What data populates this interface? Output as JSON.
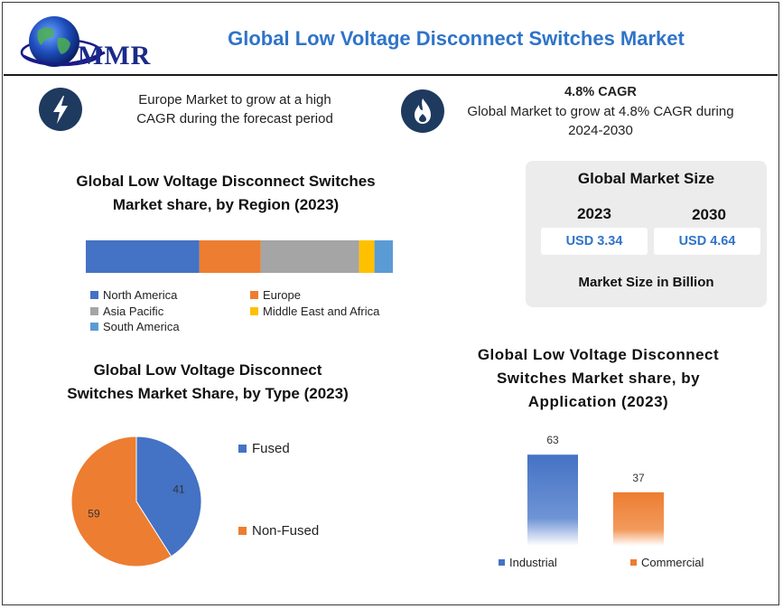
{
  "header": {
    "logo_text": "MMR",
    "title": "Global Low Voltage Disconnect Switches Market"
  },
  "highlights": {
    "left": {
      "icon": "lightning-bolt-icon",
      "line1": "Europe Market to grow at a high",
      "line2": "CAGR during the forecast period"
    },
    "right": {
      "icon": "flame-icon",
      "heading": "4.8% CAGR",
      "line1": "Global Market to grow at 4.8% CAGR during",
      "line2": "2024-2030"
    }
  },
  "market_size": {
    "title": "Global Market Size",
    "year1": "2023",
    "value1": "USD 3.34",
    "year2": "2030",
    "value2": "USD 4.64",
    "unit": "Market Size in Billion"
  },
  "colors": {
    "title_blue": "#2f74c9",
    "icon_navy": "#1f3a5f"
  },
  "chart_data": [
    {
      "type": "bar",
      "orientation": "horizontal-stacked",
      "title_line1": "Global Low Voltage Disconnect Switches",
      "title_line2": "Market share, by Region (2023)",
      "categories": [
        "North America",
        "Europe",
        "Asia Pacific",
        "Middle East and Africa",
        "South America"
      ],
      "values": [
        37,
        20,
        32,
        5,
        6
      ],
      "colors": [
        "#4472c4",
        "#ed7d31",
        "#a5a5a5",
        "#ffc000",
        "#5b9bd5"
      ],
      "legend_position": "bottom"
    },
    {
      "type": "pie",
      "title_line1": "Global Low Voltage Disconnect",
      "title_line2": "Switches Market Share, by Type (2023)",
      "categories": [
        "Fused",
        "Non-Fused"
      ],
      "values": [
        41,
        59
      ],
      "labels": [
        "41",
        "59"
      ],
      "colors": [
        "#4472c4",
        "#ed7d31"
      ],
      "legend_position": "right"
    },
    {
      "type": "bar",
      "title_line1": "Global Low Voltage Disconnect",
      "title_line2": "Switches Market share, by",
      "title_line3": "Application (2023)",
      "categories": [
        "Industrial",
        "Commercial"
      ],
      "values": [
        63,
        37
      ],
      "labels": [
        "63",
        "37"
      ],
      "colors": [
        "#4472c4",
        "#ed7d31"
      ],
      "ylim": [
        0,
        70
      ],
      "legend_position": "bottom"
    }
  ]
}
